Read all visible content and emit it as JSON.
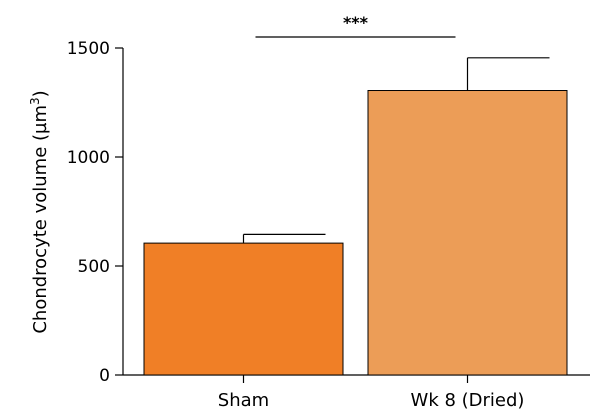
{
  "chart_data": {
    "type": "bar",
    "title": "",
    "xlabel": "",
    "ylabel": "Chondrocyte volume (µm",
    "ylabel_superscript": "3",
    "ylabel_suffix": ")",
    "ylim": [
      0,
      1500
    ],
    "yticks": [
      0,
      500,
      1000,
      1500
    ],
    "categories": [
      "Sham",
      "Wk 8 (Dried)"
    ],
    "values": [
      605,
      1305
    ],
    "errors": [
      40,
      150
    ],
    "colors": [
      "#f07f26",
      "#ec9d57"
    ],
    "significance": {
      "from": 0,
      "to": 1,
      "label": "***"
    },
    "grid": false
  }
}
